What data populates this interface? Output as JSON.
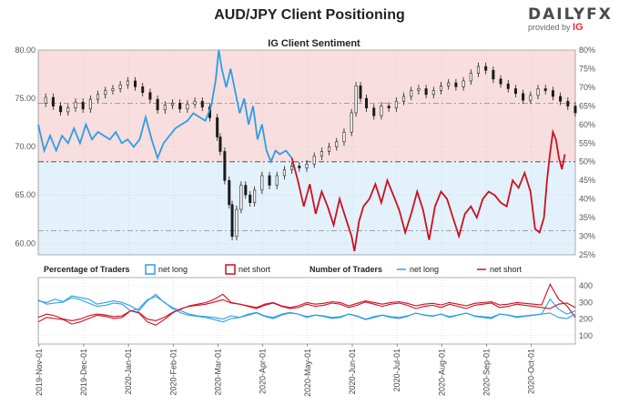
{
  "title": "AUD/JPY Client Positioning",
  "logo": {
    "brand": "DAILY",
    "brand_fx": "FX",
    "provided_by": "provided by",
    "provider": "IG"
  },
  "colors": {
    "net_long": "#2b9ee8",
    "net_short": "#cc1020",
    "price": "#1a1a1a",
    "short_zone": "#f8dede",
    "long_zone": "#e3f1fb"
  },
  "chart_data": [
    {
      "type": "line",
      "title": "IG Client Sentiment",
      "x_ticks": [
        "2019-Nov-01",
        "2019-Dec-01",
        "2020-Jan-01",
        "2020-Feb-01",
        "2020-Mar-01",
        "2020-Apr-01",
        "2020-May-01",
        "2020-Jun-01",
        "2020-Jul-01",
        "2020-Aug-01",
        "2020-Sep-01",
        "2020-Oct-01"
      ],
      "y_left_ticks": [
        "80.00",
        "75.00",
        "70.00",
        "65.00",
        "60.00"
      ],
      "y_left_range": [
        58.8,
        80.0
      ],
      "y_right_ticks": [
        "80%",
        "75%",
        "70%",
        "65%",
        "60%",
        "55%",
        "50%",
        "45%",
        "40%",
        "35%",
        "30%",
        "25%"
      ],
      "y_right_range": [
        25,
        80
      ],
      "reference_levels": {
        "price_support": 61.3,
        "sentiment_50": 50,
        "price_resistance": 74.5
      },
      "price_series": [
        {
          "x": 0,
          "y": 74.5
        },
        {
          "x": 5,
          "y": 75.1
        },
        {
          "x": 10,
          "y": 74.2
        },
        {
          "x": 15,
          "y": 73.6
        },
        {
          "x": 20,
          "y": 74.0
        },
        {
          "x": 25,
          "y": 74.6
        },
        {
          "x": 30,
          "y": 73.9
        },
        {
          "x": 35,
          "y": 74.9
        },
        {
          "x": 40,
          "y": 75.4
        },
        {
          "x": 45,
          "y": 75.8
        },
        {
          "x": 50,
          "y": 76.0
        },
        {
          "x": 55,
          "y": 76.4
        },
        {
          "x": 60,
          "y": 76.8
        },
        {
          "x": 65,
          "y": 76.2
        },
        {
          "x": 70,
          "y": 75.6
        },
        {
          "x": 75,
          "y": 74.9
        },
        {
          "x": 80,
          "y": 73.8
        },
        {
          "x": 85,
          "y": 74.3
        },
        {
          "x": 90,
          "y": 74.5
        },
        {
          "x": 95,
          "y": 73.9
        },
        {
          "x": 100,
          "y": 74.4
        },
        {
          "x": 105,
          "y": 74.7
        },
        {
          "x": 110,
          "y": 74.1
        },
        {
          "x": 115,
          "y": 73.0
        },
        {
          "x": 120,
          "y": 71.0
        },
        {
          "x": 122,
          "y": 69.5
        },
        {
          "x": 125,
          "y": 66.5
        },
        {
          "x": 128,
          "y": 64.0
        },
        {
          "x": 130,
          "y": 60.7
        },
        {
          "x": 133,
          "y": 63.5
        },
        {
          "x": 136,
          "y": 66.0
        },
        {
          "x": 139,
          "y": 65.0
        },
        {
          "x": 142,
          "y": 64.2
        },
        {
          "x": 145,
          "y": 65.5
        },
        {
          "x": 150,
          "y": 67.0
        },
        {
          "x": 155,
          "y": 66.0
        },
        {
          "x": 160,
          "y": 67.0
        },
        {
          "x": 165,
          "y": 67.6
        },
        {
          "x": 170,
          "y": 68.0
        },
        {
          "x": 175,
          "y": 67.8
        },
        {
          "x": 180,
          "y": 68.2
        },
        {
          "x": 185,
          "y": 69.0
        },
        {
          "x": 190,
          "y": 69.5
        },
        {
          "x": 195,
          "y": 70.0
        },
        {
          "x": 200,
          "y": 70.5
        },
        {
          "x": 205,
          "y": 71.5
        },
        {
          "x": 210,
          "y": 73.5
        },
        {
          "x": 213,
          "y": 76.3
        },
        {
          "x": 216,
          "y": 75.0
        },
        {
          "x": 220,
          "y": 74.0
        },
        {
          "x": 225,
          "y": 73.2
        },
        {
          "x": 230,
          "y": 74.2
        },
        {
          "x": 235,
          "y": 74.0
        },
        {
          "x": 240,
          "y": 74.7
        },
        {
          "x": 245,
          "y": 75.2
        },
        {
          "x": 250,
          "y": 75.8
        },
        {
          "x": 255,
          "y": 76.0
        },
        {
          "x": 260,
          "y": 75.4
        },
        {
          "x": 265,
          "y": 75.8
        },
        {
          "x": 270,
          "y": 76.3
        },
        {
          "x": 275,
          "y": 76.6
        },
        {
          "x": 280,
          "y": 76.2
        },
        {
          "x": 285,
          "y": 76.8
        },
        {
          "x": 290,
          "y": 77.6
        },
        {
          "x": 295,
          "y": 78.3
        },
        {
          "x": 300,
          "y": 77.9
        },
        {
          "x": 305,
          "y": 77.0
        },
        {
          "x": 310,
          "y": 76.5
        },
        {
          "x": 315,
          "y": 76.0
        },
        {
          "x": 320,
          "y": 75.5
        },
        {
          "x": 325,
          "y": 74.8
        },
        {
          "x": 330,
          "y": 75.3
        },
        {
          "x": 335,
          "y": 76.0
        },
        {
          "x": 340,
          "y": 75.8
        },
        {
          "x": 345,
          "y": 75.2
        },
        {
          "x": 350,
          "y": 74.7
        },
        {
          "x": 355,
          "y": 74.2
        },
        {
          "x": 360,
          "y": 73.5
        }
      ],
      "series": [
        {
          "name": "net long",
          "values": [
            {
              "x": 0,
              "y": 60
            },
            {
              "x": 4,
              "y": 53
            },
            {
              "x": 8,
              "y": 57
            },
            {
              "x": 12,
              "y": 53
            },
            {
              "x": 16,
              "y": 57
            },
            {
              "x": 20,
              "y": 55
            },
            {
              "x": 24,
              "y": 59
            },
            {
              "x": 28,
              "y": 55
            },
            {
              "x": 32,
              "y": 60
            },
            {
              "x": 36,
              "y": 56
            },
            {
              "x": 40,
              "y": 58
            },
            {
              "x": 44,
              "y": 57
            },
            {
              "x": 48,
              "y": 56
            },
            {
              "x": 52,
              "y": 58
            },
            {
              "x": 56,
              "y": 55
            },
            {
              "x": 60,
              "y": 56
            },
            {
              "x": 64,
              "y": 54
            },
            {
              "x": 68,
              "y": 56
            },
            {
              "x": 72,
              "y": 62
            },
            {
              "x": 76,
              "y": 56
            },
            {
              "x": 80,
              "y": 51
            },
            {
              "x": 84,
              "y": 55
            },
            {
              "x": 88,
              "y": 57
            },
            {
              "x": 92,
              "y": 59
            },
            {
              "x": 96,
              "y": 60
            },
            {
              "x": 100,
              "y": 61
            },
            {
              "x": 104,
              "y": 63
            },
            {
              "x": 108,
              "y": 62
            },
            {
              "x": 112,
              "y": 61
            },
            {
              "x": 116,
              "y": 65
            },
            {
              "x": 119,
              "y": 72
            },
            {
              "x": 121,
              "y": 80
            },
            {
              "x": 123,
              "y": 75
            },
            {
              "x": 126,
              "y": 70
            },
            {
              "x": 129,
              "y": 75
            },
            {
              "x": 132,
              "y": 69
            },
            {
              "x": 135,
              "y": 63
            },
            {
              "x": 138,
              "y": 67
            },
            {
              "x": 141,
              "y": 60
            },
            {
              "x": 144,
              "y": 65
            },
            {
              "x": 147,
              "y": 56
            },
            {
              "x": 150,
              "y": 60
            },
            {
              "x": 153,
              "y": 53
            },
            {
              "x": 156,
              "y": 50
            },
            {
              "x": 159,
              "y": 53
            },
            {
              "x": 162,
              "y": 52
            },
            {
              "x": 166,
              "y": 53
            },
            {
              "x": 170,
              "y": 51
            }
          ]
        },
        {
          "name": "net short",
          "values": [
            {
              "x": 170,
              "y": 51
            },
            {
              "x": 174,
              "y": 45
            },
            {
              "x": 178,
              "y": 38
            },
            {
              "x": 182,
              "y": 44
            },
            {
              "x": 186,
              "y": 36
            },
            {
              "x": 190,
              "y": 42
            },
            {
              "x": 194,
              "y": 38
            },
            {
              "x": 198,
              "y": 33
            },
            {
              "x": 202,
              "y": 40
            },
            {
              "x": 206,
              "y": 35
            },
            {
              "x": 210,
              "y": 30
            },
            {
              "x": 212,
              "y": 26
            },
            {
              "x": 215,
              "y": 34
            },
            {
              "x": 218,
              "y": 38
            },
            {
              "x": 222,
              "y": 40
            },
            {
              "x": 226,
              "y": 44
            },
            {
              "x": 230,
              "y": 39
            },
            {
              "x": 234,
              "y": 45
            },
            {
              "x": 238,
              "y": 41
            },
            {
              "x": 242,
              "y": 37
            },
            {
              "x": 246,
              "y": 31
            },
            {
              "x": 250,
              "y": 36
            },
            {
              "x": 254,
              "y": 42
            },
            {
              "x": 258,
              "y": 37
            },
            {
              "x": 262,
              "y": 29
            },
            {
              "x": 266,
              "y": 38
            },
            {
              "x": 270,
              "y": 42
            },
            {
              "x": 274,
              "y": 40
            },
            {
              "x": 278,
              "y": 35
            },
            {
              "x": 282,
              "y": 30
            },
            {
              "x": 286,
              "y": 36
            },
            {
              "x": 290,
              "y": 38
            },
            {
              "x": 294,
              "y": 35
            },
            {
              "x": 298,
              "y": 40
            },
            {
              "x": 302,
              "y": 42
            },
            {
              "x": 306,
              "y": 41
            },
            {
              "x": 310,
              "y": 39
            },
            {
              "x": 314,
              "y": 38
            },
            {
              "x": 318,
              "y": 45
            },
            {
              "x": 322,
              "y": 43
            },
            {
              "x": 326,
              "y": 47
            },
            {
              "x": 330,
              "y": 42
            },
            {
              "x": 333,
              "y": 32
            },
            {
              "x": 336,
              "y": 31
            },
            {
              "x": 339,
              "y": 35
            },
            {
              "x": 341,
              "y": 45
            },
            {
              "x": 343,
              "y": 52
            },
            {
              "x": 345,
              "y": 58
            },
            {
              "x": 347,
              "y": 56
            },
            {
              "x": 349,
              "y": 51
            },
            {
              "x": 351,
              "y": 48
            },
            {
              "x": 353,
              "y": 52
            }
          ]
        }
      ]
    },
    {
      "type": "line",
      "title": "Percentage of Traders",
      "legend": [
        "net long",
        "net short"
      ],
      "series": [
        {
          "name": "net long",
          "values": [
            60,
            56,
            57,
            58,
            62,
            60,
            57,
            54,
            55,
            57,
            56,
            50,
            52,
            60,
            63,
            58,
            52,
            48,
            46,
            45,
            44,
            42,
            40,
            43,
            44,
            46,
            48,
            45,
            43,
            46,
            48,
            47,
            44,
            46,
            45,
            43,
            44,
            47,
            45,
            42,
            44,
            46,
            44,
            43,
            45,
            48,
            46,
            45,
            47,
            44,
            46,
            48,
            45,
            44,
            43,
            47,
            46,
            44,
            45,
            46,
            47,
            48,
            44,
            43,
            47
          ]
        },
        {
          "name": "net short",
          "values": [
            40,
            44,
            43,
            42,
            38,
            40,
            43,
            46,
            45,
            43,
            44,
            50,
            48,
            40,
            37,
            42,
            48,
            52,
            54,
            55,
            56,
            58,
            60,
            57,
            56,
            54,
            52,
            55,
            57,
            54,
            52,
            53,
            56,
            54,
            55,
            57,
            56,
            53,
            55,
            58,
            56,
            54,
            56,
            57,
            55,
            52,
            54,
            55,
            53,
            56,
            54,
            52,
            55,
            56,
            57,
            53,
            54,
            56,
            55,
            54,
            53,
            52,
            56,
            57,
            53
          ]
        }
      ]
    },
    {
      "type": "line",
      "title": "Number of Traders",
      "legend": [
        "net long",
        "net short"
      ],
      "y_ticks": [
        "400",
        "300",
        "200",
        "100"
      ],
      "y_range": [
        50,
        450
      ],
      "series": [
        {
          "name": "net long",
          "values": [
            310,
            300,
            320,
            305,
            340,
            330,
            320,
            290,
            300,
            310,
            300,
            280,
            250,
            310,
            350,
            300,
            270,
            250,
            230,
            220,
            215,
            210,
            200,
            220,
            210,
            230,
            240,
            220,
            210,
            230,
            240,
            230,
            215,
            225,
            220,
            210,
            215,
            230,
            220,
            200,
            215,
            225,
            215,
            210,
            220,
            235,
            225,
            220,
            230,
            215,
            225,
            235,
            220,
            215,
            210,
            230,
            225,
            215,
            220,
            225,
            230,
            320,
            260,
            230,
            250
          ]
        },
        {
          "name": "net short",
          "values": [
            210,
            230,
            220,
            200,
            190,
            200,
            220,
            230,
            225,
            215,
            220,
            250,
            240,
            200,
            190,
            210,
            240,
            260,
            280,
            290,
            300,
            320,
            350,
            300,
            290,
            280,
            270,
            290,
            300,
            280,
            270,
            280,
            300,
            290,
            295,
            305,
            300,
            280,
            295,
            310,
            300,
            290,
            300,
            305,
            295,
            280,
            290,
            295,
            285,
            300,
            290,
            280,
            295,
            300,
            305,
            285,
            290,
            300,
            295,
            290,
            285,
            410,
            320,
            280,
            210
          ]
        }
      ]
    }
  ]
}
